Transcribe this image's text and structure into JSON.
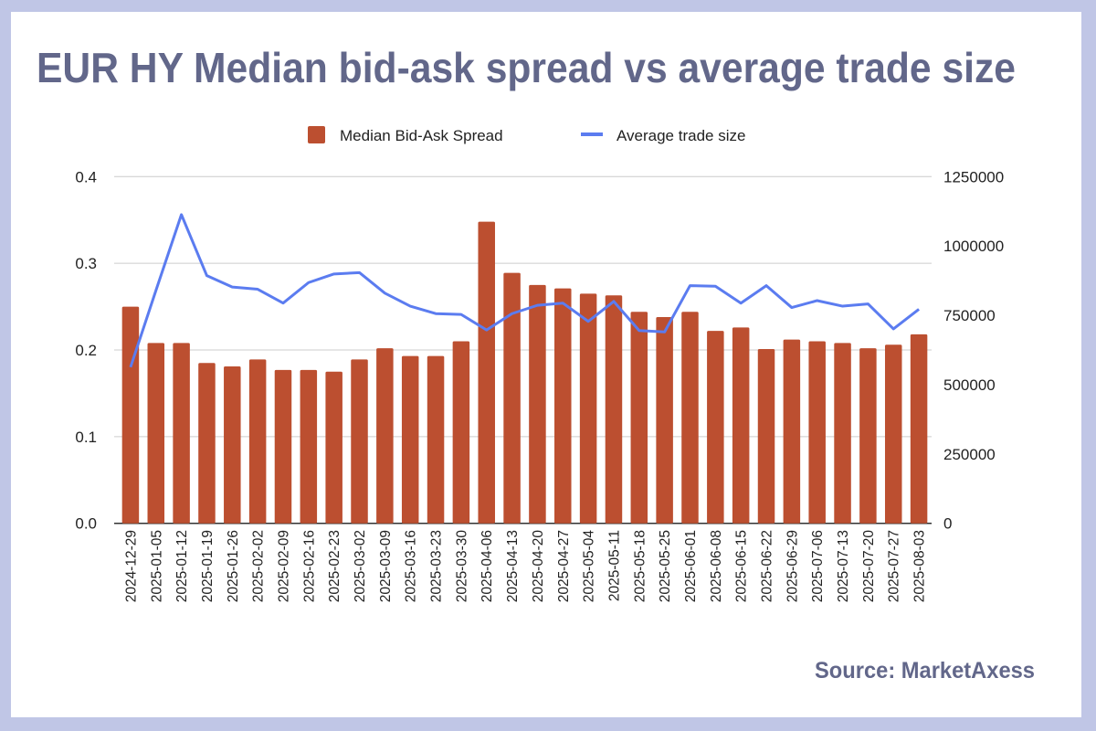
{
  "chart_data": {
    "type": "bar",
    "title": "EUR HY Median bid-ask spread vs average trade size",
    "source": "Source: MarketAxess",
    "legend_position": "top",
    "grid": true,
    "categories": [
      "2024-12-29",
      "2025-01-05",
      "2025-01-12",
      "2025-01-19",
      "2025-01-26",
      "2025-02-02",
      "2025-02-09",
      "2025-02-16",
      "2025-02-23",
      "2025-03-02",
      "2025-03-09",
      "2025-03-16",
      "2025-03-23",
      "2025-03-30",
      "2025-04-06",
      "2025-04-13",
      "2025-04-20",
      "2025-04-27",
      "2025-05-04",
      "2025-05-11",
      "2025-05-18",
      "2025-05-25",
      "2025-06-01",
      "2025-06-08",
      "2025-06-15",
      "2025-06-22",
      "2025-06-29",
      "2025-07-06",
      "2025-07-13",
      "2025-07-20",
      "2025-07-27",
      "2025-08-03"
    ],
    "series": [
      {
        "name": "Median Bid-Ask Spread",
        "type": "bar",
        "axis": "left",
        "color": "#bc4f30",
        "values": [
          0.25,
          0.208,
          0.208,
          0.185,
          0.181,
          0.189,
          0.177,
          0.177,
          0.175,
          0.189,
          0.202,
          0.193,
          0.193,
          0.21,
          0.348,
          0.289,
          0.275,
          0.271,
          0.265,
          0.263,
          0.244,
          0.238,
          0.244,
          0.222,
          0.226,
          0.201,
          0.212,
          0.21,
          0.208,
          0.202,
          0.206,
          0.218
        ]
      },
      {
        "name": "Average trade size",
        "type": "line",
        "axis": "right",
        "color": "#5b7cf0",
        "values": [
          563000,
          840000,
          1113000,
          893000,
          852000,
          844000,
          794000,
          868000,
          899000,
          904000,
          830000,
          783000,
          756000,
          753000,
          697000,
          756000,
          786000,
          794000,
          728000,
          800000,
          695000,
          690000,
          857000,
          855000,
          794000,
          857000,
          778000,
          803000,
          783000,
          791000,
          701000,
          772000
        ]
      }
    ],
    "left_axis": {
      "ylim": [
        0,
        0.4
      ],
      "ticks": [
        "0.0",
        "0.1",
        "0.2",
        "0.3",
        "0.4"
      ]
    },
    "right_axis": {
      "ylim": [
        0,
        1250000
      ],
      "ticks": [
        "0",
        "250000",
        "500000",
        "750000",
        "1000000",
        "1250000"
      ]
    }
  }
}
